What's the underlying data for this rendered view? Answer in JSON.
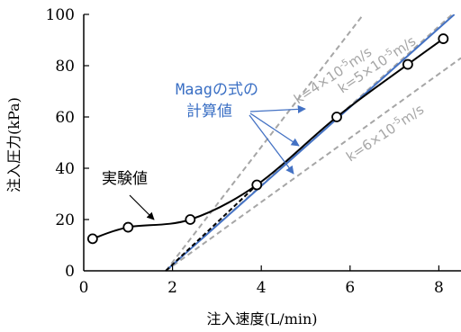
{
  "chart_data": {
    "type": "line",
    "xlabel": "注入速度(L/min)",
    "ylabel": "注入圧力(kPa)",
    "xlim": [
      0,
      8.5
    ],
    "ylim": [
      0,
      100
    ],
    "x_ticks": [
      0,
      2,
      4,
      6,
      8
    ],
    "y_ticks": [
      0,
      20,
      40,
      60,
      80,
      100
    ],
    "grid": false,
    "series": [
      {
        "name": "実験値",
        "kind": "measured",
        "color": "#000000",
        "marker": "open-circle",
        "x": [
          0.2,
          1.0,
          2.4,
          3.9,
          5.7,
          7.3,
          8.1
        ],
        "y": [
          12.5,
          17,
          20,
          33.5,
          60,
          80.5,
          90.5
        ]
      },
      {
        "name": "Maagの式の計算値",
        "kind": "calculated",
        "color": "#4472c4",
        "x": [
          1.85,
          8.35
        ],
        "y": [
          0,
          100
        ]
      },
      {
        "name": "k=4×10-5m/s",
        "kind": "reference",
        "color": "#a6a6a6",
        "x": [
          1.85,
          6.3
        ],
        "y": [
          0,
          100
        ]
      },
      {
        "name": "k=5×10-5m/s",
        "kind": "reference",
        "color": "#a6a6a6",
        "x": [
          1.85,
          8.3
        ],
        "y": [
          0,
          100
        ]
      },
      {
        "name": "k=6×10-5m/s",
        "kind": "reference",
        "color": "#a6a6a6",
        "x": [
          1.85,
          8.5
        ],
        "y": [
          0,
          83
        ]
      },
      {
        "name": "",
        "kind": "extrapolation",
        "color": "#000000",
        "x": [
          1.85,
          3.9
        ],
        "y": [
          0,
          33.5
        ]
      }
    ],
    "annotations": {
      "measured_label": "実験値",
      "calc_label_line1": "Maagの式の",
      "calc_label_line2": "計算値",
      "k4": {
        "prefix": "k=4×10",
        "sup": "-5",
        "suffix": "m/s"
      },
      "k5": {
        "prefix": "k=5×10",
        "sup": "-5",
        "suffix": "m/s"
      },
      "k6": {
        "prefix": "k=6×10",
        "sup": "-5",
        "suffix": "m/s"
      }
    }
  }
}
